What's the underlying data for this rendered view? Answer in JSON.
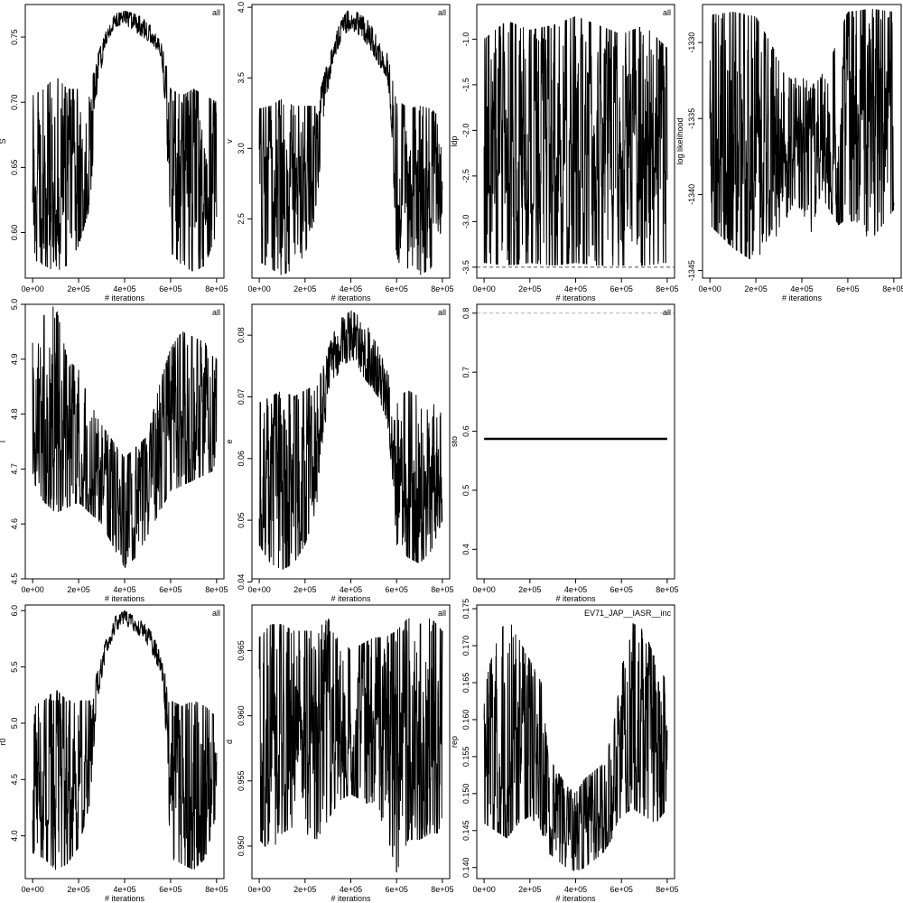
{
  "figure": {
    "layout_rows": 3,
    "layout_cols": 4,
    "trace_color": "#000000",
    "background": "#ffffff"
  },
  "chart_data": [
    {
      "type": "line",
      "panel": "S",
      "ylabel": "S",
      "xlabel": "# iterations",
      "tag": "all",
      "xlim": [
        0,
        800000
      ],
      "ylim": [
        0.565,
        0.775
      ],
      "xticks": [
        0,
        200000,
        400000,
        600000,
        800000
      ],
      "xtick_labels": [
        "0e+00",
        "2e+05",
        "4e+05",
        "6e+05",
        "8e+05"
      ],
      "yticks": [
        0.6,
        0.65,
        0.7,
        0.75
      ],
      "ytick_labels": [
        "0.60",
        "0.65",
        "0.70",
        "0.75"
      ],
      "series": [
        {
          "envelope": {
            "x": [
              0,
              50000,
              100000,
              150000,
              200000,
              250000,
              280000,
              320000,
              360000,
              400000,
              440000,
              480000,
              520000,
              560000,
              580000,
              600000,
              650000,
              700000,
              750000,
              800000
            ],
            "upper": [
              0.705,
              0.71,
              0.72,
              0.71,
              0.71,
              0.71,
              0.735,
              0.755,
              0.768,
              0.77,
              0.768,
              0.765,
              0.758,
              0.745,
              0.73,
              0.71,
              0.705,
              0.71,
              0.705,
              0.7
            ],
            "lower": [
              0.58,
              0.575,
              0.57,
              0.575,
              0.59,
              0.62,
              0.71,
              0.745,
              0.758,
              0.76,
              0.755,
              0.75,
              0.745,
              0.735,
              0.69,
              0.585,
              0.575,
              0.57,
              0.575,
              0.6
            ]
          }
        }
      ]
    },
    {
      "type": "line",
      "panel": "v",
      "ylabel": "v",
      "xlabel": "# iterations",
      "tag": "all",
      "xlim": [
        0,
        800000
      ],
      "ylim": [
        2.08,
        4.02
      ],
      "xticks": [
        0,
        200000,
        400000,
        600000,
        800000
      ],
      "xtick_labels": [
        "0e+00",
        "2e+05",
        "4e+05",
        "6e+05",
        "8e+05"
      ],
      "yticks": [
        2.5,
        3.0,
        3.5,
        4.0
      ],
      "ytick_labels": [
        "2.5",
        "3.0",
        "3.5",
        "4.0"
      ],
      "series": [
        {
          "envelope": {
            "x": [
              0,
              50000,
              100000,
              150000,
              200000,
              250000,
              280000,
              320000,
              360000,
              400000,
              440000,
              480000,
              520000,
              560000,
              580000,
              600000,
              650000,
              700000,
              750000,
              800000
            ],
            "upper": [
              3.28,
              3.3,
              3.35,
              3.3,
              3.3,
              3.3,
              3.5,
              3.75,
              3.92,
              4.0,
              3.95,
              3.9,
              3.78,
              3.68,
              3.5,
              3.35,
              3.28,
              3.3,
              3.28,
              3.2
            ],
            "lower": [
              2.2,
              2.15,
              2.1,
              2.15,
              2.25,
              2.55,
              3.2,
              3.6,
              3.78,
              3.85,
              3.8,
              3.72,
              3.6,
              3.5,
              3.1,
              2.2,
              2.15,
              2.1,
              2.15,
              2.45
            ]
          }
        }
      ]
    },
    {
      "type": "line",
      "panel": "ldp",
      "ylabel": "ldp",
      "xlabel": "# iterations",
      "tag": "all",
      "xlim": [
        0,
        800000
      ],
      "ylim": [
        -3.62,
        -0.62
      ],
      "xticks": [
        0,
        200000,
        400000,
        600000,
        800000
      ],
      "xtick_labels": [
        "0e+00",
        "2e+05",
        "4e+05",
        "6e+05",
        "8e+05"
      ],
      "yticks": [
        -3.5,
        -3.0,
        -2.5,
        -2.0,
        -1.5,
        -1.0
      ],
      "ytick_labels": [
        "-3.5",
        "-3.0",
        "-2.5",
        "-2.0",
        "-1.5",
        "-1.0"
      ],
      "reference_line": -3.5,
      "series": [
        {
          "envelope": {
            "x": [
              0,
              100000,
              200000,
              300000,
              400000,
              500000,
              600000,
              700000,
              800000
            ],
            "upper": [
              -1.0,
              -0.8,
              -0.9,
              -0.85,
              -0.75,
              -0.85,
              -0.95,
              -0.85,
              -1.1
            ],
            "lower": [
              -3.45,
              -3.48,
              -3.45,
              -3.48,
              -3.45,
              -3.48,
              -3.48,
              -3.48,
              -3.45
            ]
          }
        }
      ]
    },
    {
      "type": "line",
      "panel": "log likelihood",
      "ylabel": "log likelihood",
      "xlabel": "# iterations",
      "tag": "",
      "xlim": [
        0,
        800000
      ],
      "ylim": [
        -1345.5,
        -1327.5
      ],
      "xticks": [
        0,
        200000,
        400000,
        600000,
        800000
      ],
      "xtick_labels": [
        "0e+00",
        "2e+05",
        "4e+05",
        "6e+05",
        "8e+05"
      ],
      "yticks": [
        -1345,
        -1340,
        -1335,
        -1330
      ],
      "ytick_labels": [
        "-1345",
        "-1340",
        "-1335",
        "-1330"
      ],
      "series": [
        {
          "envelope": {
            "x": [
              0,
              100000,
              200000,
              280000,
              320000,
              360000,
              400000,
              440000,
              480000,
              520000,
              560000,
              600000,
              700000,
              800000
            ],
            "upper": [
              -1328.2,
              -1328.0,
              -1328.3,
              -1330.5,
              -1332.0,
              -1332.5,
              -1332.0,
              -1333.0,
              -1332.0,
              -1331.5,
              -1329.5,
              -1328.0,
              -1327.8,
              -1328.0
            ],
            "lower": [
              -1342.0,
              -1343.5,
              -1344.5,
              -1342.0,
              -1345.3,
              -1340.5,
              -1341.0,
              -1342.5,
              -1340.0,
              -1341.0,
              -1342.0,
              -1341.5,
              -1343.0,
              -1341.0
            ]
          }
        }
      ]
    },
    {
      "type": "line",
      "panel": "I",
      "ylabel": "I",
      "xlabel": "# iterations",
      "tag": "all",
      "xlim": [
        0,
        800000
      ],
      "ylim": [
        4.5,
        5.0
      ],
      "xticks": [
        0,
        200000,
        400000,
        600000,
        800000
      ],
      "xtick_labels": [
        "0e+00",
        "2e+05",
        "4e+05",
        "6e+05",
        "8e+05"
      ],
      "yticks": [
        4.5,
        4.6,
        4.7,
        4.8,
        4.9,
        5.0
      ],
      "ytick_labels": [
        "4.5",
        "4.6",
        "4.7",
        "4.8",
        "4.9",
        "5.0"
      ],
      "series": [
        {
          "envelope": {
            "x": [
              0,
              50000,
              100000,
              150000,
              200000,
              250000,
              300000,
              350000,
              400000,
              450000,
              500000,
              550000,
              600000,
              650000,
              700000,
              750000,
              800000
            ],
            "upper": [
              4.93,
              4.98,
              5.0,
              4.9,
              4.88,
              4.82,
              4.78,
              4.75,
              4.72,
              4.74,
              4.76,
              4.85,
              4.92,
              4.95,
              4.94,
              4.93,
              4.9
            ],
            "lower": [
              4.68,
              4.64,
              4.62,
              4.63,
              4.64,
              4.62,
              4.6,
              4.56,
              4.52,
              4.54,
              4.58,
              4.62,
              4.66,
              4.67,
              4.68,
              4.69,
              4.7
            ]
          }
        }
      ]
    },
    {
      "type": "line",
      "panel": "e",
      "ylabel": "e",
      "xlabel": "# iterations",
      "tag": "all",
      "xlim": [
        0,
        800000
      ],
      "ylim": [
        0.0405,
        0.085
      ],
      "xticks": [
        0,
        200000,
        400000,
        600000,
        800000
      ],
      "xtick_labels": [
        "0e+00",
        "2e+05",
        "4e+05",
        "6e+05",
        "8e+05"
      ],
      "yticks": [
        0.04,
        0.05,
        0.06,
        0.07,
        0.08
      ],
      "ytick_labels": [
        "0.04",
        "0.05",
        "0.06",
        "0.07",
        "0.08"
      ],
      "series": [
        {
          "envelope": {
            "x": [
              0,
              50000,
              100000,
              150000,
              200000,
              250000,
              280000,
              320000,
              360000,
              400000,
              440000,
              480000,
              520000,
              560000,
              580000,
              600000,
              650000,
              700000,
              750000,
              800000
            ],
            "upper": [
              0.069,
              0.07,
              0.071,
              0.07,
              0.071,
              0.072,
              0.075,
              0.08,
              0.083,
              0.084,
              0.083,
              0.081,
              0.078,
              0.074,
              0.072,
              0.07,
              0.071,
              0.07,
              0.069,
              0.068
            ],
            "lower": [
              0.046,
              0.043,
              0.042,
              0.043,
              0.046,
              0.052,
              0.064,
              0.072,
              0.075,
              0.076,
              0.074,
              0.072,
              0.07,
              0.066,
              0.058,
              0.046,
              0.044,
              0.043,
              0.045,
              0.05
            ]
          }
        }
      ]
    },
    {
      "type": "line",
      "panel": "sto",
      "ylabel": "sto",
      "xlabel": "# iterations",
      "tag": "all",
      "xlim": [
        0,
        800000
      ],
      "ylim": [
        0.35,
        0.815
      ],
      "xticks": [
        0,
        200000,
        400000,
        600000,
        800000
      ],
      "xtick_labels": [
        "0e+00",
        "2e+05",
        "4e+05",
        "6e+05",
        "8e+05"
      ],
      "yticks": [
        0.4,
        0.5,
        0.6,
        0.7,
        0.8
      ],
      "ytick_labels": [
        "0.4",
        "0.5",
        "0.6",
        "0.7",
        "0.8"
      ],
      "reference_line": 0.8,
      "constant_value": 0.587,
      "series": []
    },
    {
      "type": "line",
      "panel": "r0",
      "ylabel": "r0",
      "xlabel": "# iterations",
      "tag": "all",
      "xlim": [
        0,
        800000
      ],
      "ylim": [
        3.62,
        6.05
      ],
      "xticks": [
        0,
        200000,
        400000,
        600000,
        800000
      ],
      "xtick_labels": [
        "0e+00",
        "2e+05",
        "4e+05",
        "6e+05",
        "8e+05"
      ],
      "yticks": [
        4.0,
        4.5,
        5.0,
        5.5,
        6.0
      ],
      "ytick_labels": [
        "4.0",
        "4.5",
        "5.0",
        "5.5",
        "6.0"
      ],
      "series": [
        {
          "envelope": {
            "x": [
              0,
              50000,
              100000,
              150000,
              200000,
              250000,
              280000,
              320000,
              360000,
              400000,
              440000,
              480000,
              520000,
              560000,
              580000,
              600000,
              650000,
              700000,
              750000,
              800000
            ],
            "upper": [
              5.15,
              5.2,
              5.3,
              5.2,
              5.2,
              5.2,
              5.45,
              5.75,
              5.95,
              6.0,
              5.95,
              5.9,
              5.8,
              5.6,
              5.4,
              5.2,
              5.15,
              5.2,
              5.15,
              5.05
            ],
            "lower": [
              3.85,
              3.8,
              3.7,
              3.75,
              3.9,
              4.3,
              5.2,
              5.6,
              5.82,
              5.88,
              5.82,
              5.75,
              5.6,
              5.45,
              4.9,
              3.8,
              3.75,
              3.7,
              3.8,
              4.2
            ]
          }
        }
      ]
    },
    {
      "type": "line",
      "panel": "d",
      "ylabel": "d",
      "xlabel": "# iterations",
      "tag": "all",
      "xlim": [
        0,
        800000
      ],
      "ylim": [
        0.9475,
        0.9685
      ],
      "xticks": [
        0,
        200000,
        400000,
        600000,
        800000
      ],
      "xtick_labels": [
        "0e+00",
        "2e+05",
        "4e+05",
        "6e+05",
        "8e+05"
      ],
      "yticks": [
        0.95,
        0.955,
        0.96,
        0.965
      ],
      "ytick_labels": [
        "0.950",
        "0.955",
        "0.960",
        "0.965"
      ],
      "series": [
        {
          "envelope": {
            "x": [
              0,
              50000,
              100000,
              150000,
              200000,
              250000,
              300000,
              350000,
              400000,
              450000,
              500000,
              550000,
              600000,
              650000,
              700000,
              750000,
              800000
            ],
            "upper": [
              0.966,
              0.967,
              0.967,
              0.9665,
              0.9665,
              0.9665,
              0.9675,
              0.966,
              0.965,
              0.9655,
              0.966,
              0.966,
              0.9665,
              0.9675,
              0.967,
              0.9675,
              0.9665
            ],
            "lower": [
              0.9505,
              0.9495,
              0.951,
              0.9515,
              0.951,
              0.9505,
              0.952,
              0.9535,
              0.954,
              0.9535,
              0.953,
              0.9515,
              0.948,
              0.9505,
              0.9505,
              0.951,
              0.951
            ]
          }
        }
      ]
    },
    {
      "type": "line",
      "panel": "rep",
      "ylabel": "rep",
      "xlabel": "# iterations",
      "tag": "EV71_JAP__IASR__inc",
      "xlim": [
        0,
        800000
      ],
      "ylim": [
        0.1385,
        0.1755
      ],
      "xticks": [
        0,
        200000,
        400000,
        600000,
        800000
      ],
      "xtick_labels": [
        "0e+00",
        "2e+05",
        "4e+05",
        "6e+05",
        "8e+05"
      ],
      "yticks": [
        0.14,
        0.145,
        0.15,
        0.155,
        0.16,
        0.165,
        0.17,
        0.175
      ],
      "ytick_labels": [
        "0.140",
        "0.145",
        "0.150",
        "0.155",
        "0.160",
        "0.165",
        "0.170",
        "0.175"
      ],
      "series": [
        {
          "envelope": {
            "x": [
              0,
              50000,
              100000,
              150000,
              200000,
              250000,
              280000,
              320000,
              360000,
              400000,
              440000,
              480000,
              520000,
              560000,
              580000,
              600000,
              650000,
              700000,
              750000,
              800000
            ],
            "upper": [
              0.165,
              0.17,
              0.174,
              0.171,
              0.168,
              0.165,
              0.155,
              0.153,
              0.151,
              0.15,
              0.152,
              0.153,
              0.154,
              0.158,
              0.162,
              0.167,
              0.173,
              0.172,
              0.168,
              0.165
            ],
            "lower": [
              0.146,
              0.145,
              0.144,
              0.146,
              0.147,
              0.145,
              0.142,
              0.141,
              0.14,
              0.1395,
              0.14,
              0.141,
              0.142,
              0.144,
              0.146,
              0.147,
              0.148,
              0.147,
              0.146,
              0.148
            ]
          }
        }
      ]
    }
  ]
}
